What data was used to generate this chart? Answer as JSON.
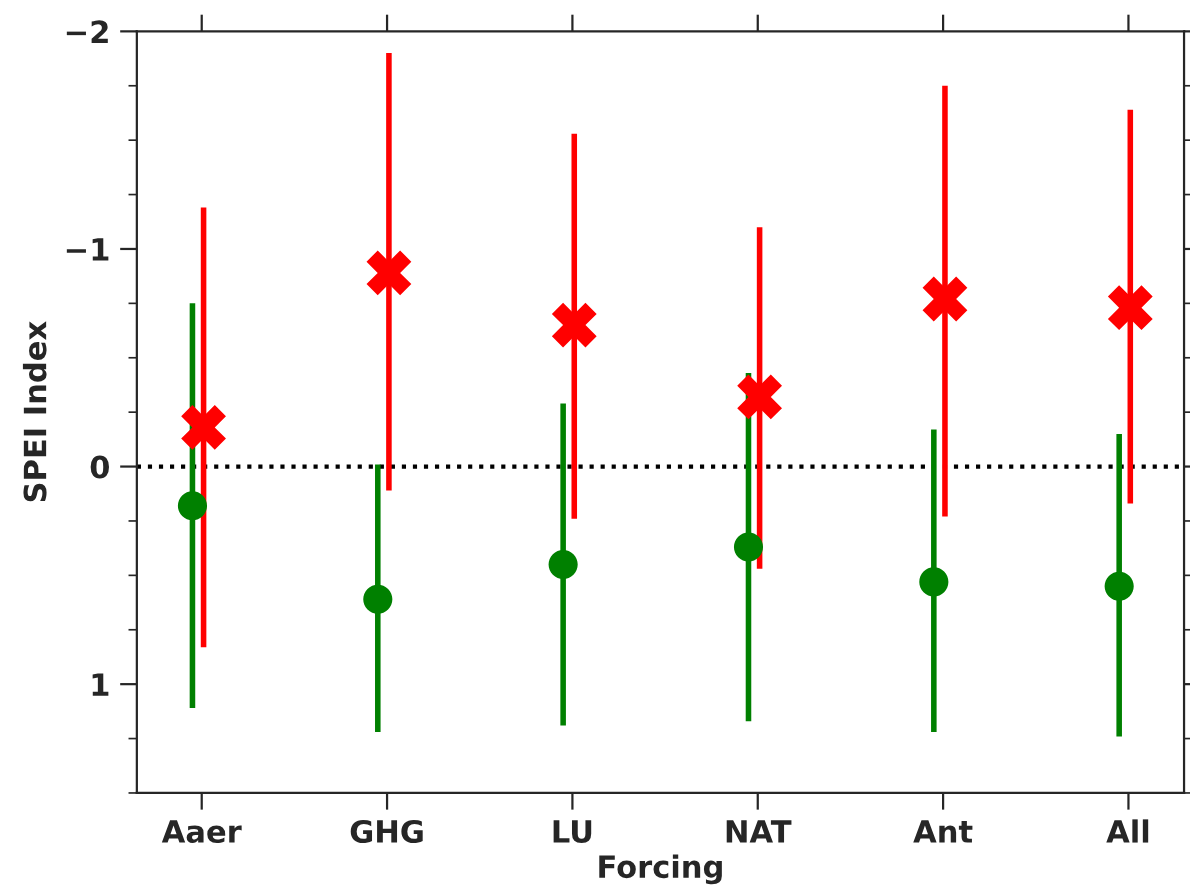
{
  "chart_data": {
    "type": "scatter",
    "xlabel": "Forcing",
    "ylabel": "SPEI Index",
    "categories": [
      "Aaer",
      "GHG",
      "LU",
      "NAT",
      "Ant",
      "All"
    ],
    "ylim": [
      1.5,
      -2
    ],
    "yticks": [
      {
        "value": -2,
        "label": "−2"
      },
      {
        "value": -1,
        "label": "−1"
      },
      0,
      1
    ],
    "series": [
      {
        "color": "#008000",
        "marker": "circle",
        "values": [
          0.18,
          0.61,
          0.45,
          0.37,
          0.53,
          0.55
        ],
        "errors": [
          [
            -0.75,
            1.11
          ],
          [
            -0.01,
            1.22
          ],
          [
            -0.29,
            1.19
          ],
          [
            -0.43,
            1.17
          ],
          [
            -0.17,
            1.22
          ],
          [
            -0.15,
            1.24
          ]
        ]
      },
      {
        "color": "#ff0000",
        "marker": "cross",
        "values": [
          -0.18,
          -0.89,
          -0.65,
          -0.32,
          -0.77,
          -0.73
        ],
        "errors": [
          [
            -1.19,
            0.83
          ],
          [
            -1.9,
            0.11
          ],
          [
            -1.53,
            0.24
          ],
          [
            -1.1,
            0.47
          ],
          [
            -1.75,
            0.23
          ],
          [
            -1.64,
            0.17
          ]
        ]
      }
    ],
    "ref_lines": [
      {
        "axis": "y",
        "value": 0,
        "color": "#000000",
        "line_style": "dotted"
      }
    ],
    "grid": false,
    "legend": false
  }
}
